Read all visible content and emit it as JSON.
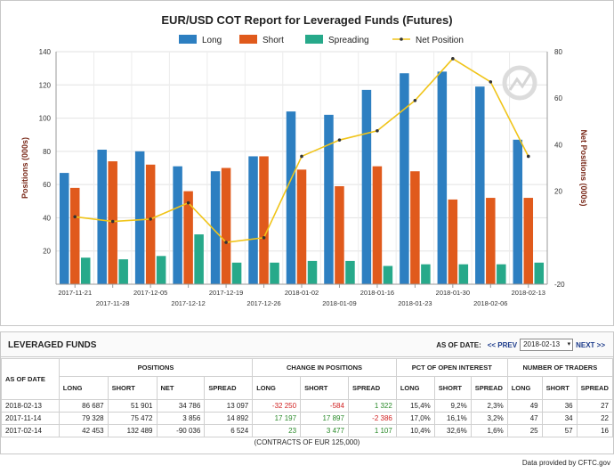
{
  "chart": {
    "title": "EUR/USD COT Report for Leveraged Funds (Futures)",
    "ylabel_left": "Positions (000s)",
    "ylabel_right": "Net Positions (000s)",
    "legend": [
      {
        "label": "Long",
        "color": "#2d7fc1",
        "kind": "bar"
      },
      {
        "label": "Short",
        "color": "#e05a1c",
        "kind": "bar"
      },
      {
        "label": "Spreading",
        "color": "#27a98a",
        "kind": "bar"
      },
      {
        "label": "Net Position",
        "color": "#f0c419",
        "kind": "line"
      }
    ]
  },
  "chart_data": {
    "type": "bar",
    "title": "EUR/USD COT Report for Leveraged Funds (Futures)",
    "ylabel": "Positions (000s)",
    "ylabel_right": "Net Positions (000s)",
    "ylim": [
      0,
      140
    ],
    "ylim_right": [
      -20,
      80
    ],
    "yticks": [
      20,
      40,
      60,
      80,
      100,
      120,
      140
    ],
    "yticks_right": [
      -20,
      20,
      40,
      60,
      80
    ],
    "legend_position": "top",
    "grid": true,
    "categories": [
      "2017-11-21",
      "2017-11-28",
      "2017-12-05",
      "2017-12-12",
      "2017-12-19",
      "2017-12-26",
      "2018-01-02",
      "2018-01-09",
      "2018-01-16",
      "2018-01-23",
      "2018-01-30",
      "2018-02-06",
      "2018-02-13"
    ],
    "series": [
      {
        "name": "Long",
        "type": "bar",
        "axis": "left",
        "color": "#2d7fc1",
        "values": [
          67,
          81,
          80,
          71,
          68,
          77,
          104,
          102,
          117,
          127,
          128,
          119,
          87
        ]
      },
      {
        "name": "Short",
        "type": "bar",
        "axis": "left",
        "color": "#e05a1c",
        "values": [
          58,
          74,
          72,
          56,
          70,
          77,
          69,
          59,
          71,
          68,
          51,
          52,
          52
        ]
      },
      {
        "name": "Spreading",
        "type": "bar",
        "axis": "left",
        "color": "#27a98a",
        "values": [
          16,
          15,
          17,
          30,
          13,
          13,
          14,
          14,
          11,
          12,
          12,
          12,
          13
        ]
      },
      {
        "name": "Net Position",
        "type": "line",
        "axis": "right",
        "color": "#f0c419",
        "values": [
          9,
          7,
          8,
          15,
          -2,
          0,
          35,
          42,
          46,
          59,
          77,
          67,
          35
        ]
      }
    ]
  },
  "table": {
    "title": "LEVERAGED FUNDS",
    "as_of_label": "AS OF DATE:",
    "prev_label": "<< PREV",
    "selected_date": "2018-02-13",
    "next_label": "NEXT >>",
    "groups": [
      "POSITIONS",
      "CHANGE IN POSITIONS",
      "PCT OF OPEN INTEREST",
      "NUMBER OF TRADERS"
    ],
    "as_of_header": "AS OF DATE",
    "subheaders": [
      "LONG",
      "SHORT",
      "NET",
      "SPREAD",
      "LONG",
      "SHORT",
      "SPREAD",
      "LONG",
      "SHORT",
      "SPREAD",
      "LONG",
      "SHORT",
      "SPREAD"
    ],
    "rows": [
      {
        "date": "2018-02-13",
        "cells": [
          "86 687",
          "51 901",
          "34 786",
          "13 097",
          "-32 250",
          "-584",
          "1 322",
          "15,4%",
          "9,2%",
          "2,3%",
          "49",
          "36",
          "27"
        ]
      },
      {
        "date": "2017-11-14",
        "cells": [
          "79 328",
          "75 472",
          "3 856",
          "14 892",
          "17 197",
          "17 897",
          "-2 386",
          "17,0%",
          "16,1%",
          "3,2%",
          "47",
          "34",
          "22"
        ]
      },
      {
        "date": "2017-02-14",
        "cells": [
          "42 453",
          "132 489",
          "-90 036",
          "6 524",
          "23",
          "3 477",
          "1 107",
          "10,4%",
          "32,6%",
          "1,6%",
          "25",
          "57",
          "16"
        ]
      }
    ],
    "footer": "(CONTRACTS OF EUR 125,000)"
  },
  "credit": "Data provided by CFTC.gov",
  "colors": {
    "positive": "#2a8a2a",
    "negative": "#d02020",
    "axis_label": "#7a2a1a"
  }
}
